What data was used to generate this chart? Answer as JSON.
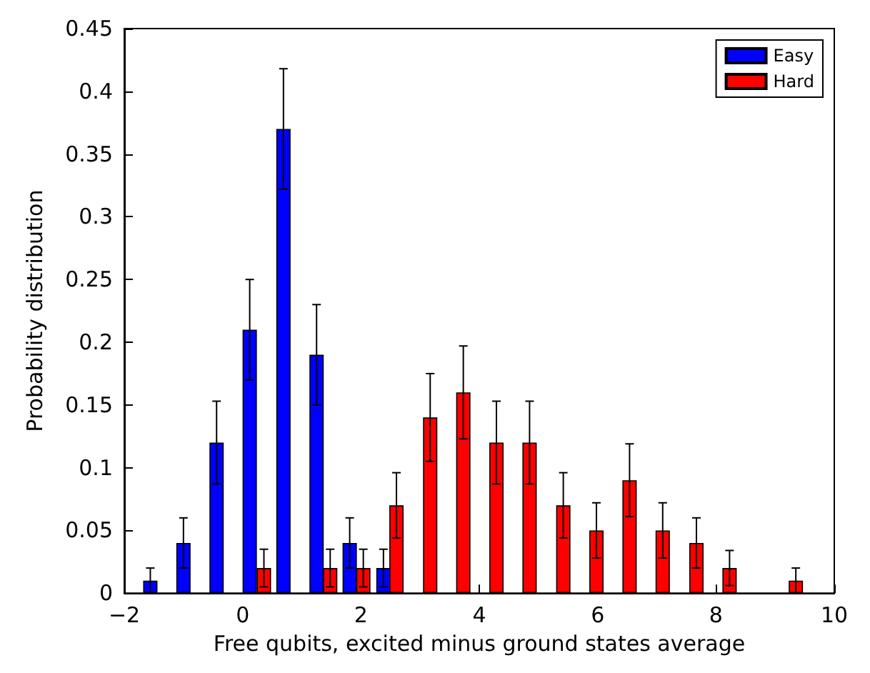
{
  "chart_data": {
    "type": "bar",
    "xlabel": "Free qubits, excited minus ground states average",
    "ylabel": "Probability distribution",
    "series": [
      {
        "name": "Easy",
        "color": "#0000ff",
        "x": [
          -1.56,
          -1.0,
          -0.44,
          0.12,
          0.69,
          1.25,
          1.81,
          2.38
        ],
        "values": [
          0.01,
          0.04,
          0.12,
          0.21,
          0.37,
          0.19,
          0.04,
          0.02
        ],
        "errors": [
          0.01,
          0.02,
          0.033,
          0.04,
          0.048,
          0.04,
          0.02,
          0.015
        ]
      },
      {
        "name": "Hard",
        "color": "#ff0000",
        "x": [
          0.36,
          1.48,
          2.04,
          2.6,
          3.17,
          3.73,
          4.29,
          4.85,
          5.42,
          5.98,
          6.54,
          7.1,
          7.67,
          8.23,
          9.35
        ],
        "values": [
          0.02,
          0.02,
          0.02,
          0.07,
          0.14,
          0.16,
          0.12,
          0.12,
          0.07,
          0.05,
          0.09,
          0.05,
          0.04,
          0.02,
          0.01
        ],
        "errors": [
          0.015,
          0.015,
          0.015,
          0.026,
          0.035,
          0.037,
          0.033,
          0.033,
          0.026,
          0.022,
          0.029,
          0.022,
          0.02,
          0.014,
          0.01
        ]
      }
    ],
    "xlim": [
      -2,
      10
    ],
    "xticks": [
      -2,
      0,
      2,
      4,
      6,
      8,
      10
    ],
    "ylim": [
      0,
      0.45
    ],
    "yticks": [
      0,
      0.05,
      0.1,
      0.15,
      0.2,
      0.25,
      0.3,
      0.35,
      0.4,
      0.45
    ],
    "grid": false,
    "legend": "top right"
  }
}
